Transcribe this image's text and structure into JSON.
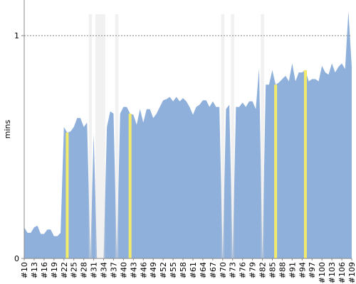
{
  "chart_data": {
    "type": "area",
    "y_label": "mins",
    "categories": [
      "#10",
      null,
      null,
      "#13",
      null,
      null,
      "#16",
      null,
      null,
      "#19",
      null,
      null,
      "#22",
      null,
      null,
      "#25",
      null,
      null,
      "#28",
      null,
      null,
      "#31",
      null,
      null,
      "#34",
      null,
      null,
      "#37",
      null,
      null,
      "#40",
      null,
      null,
      "#43",
      null,
      null,
      "#46",
      null,
      null,
      "#49",
      null,
      null,
      "#52",
      null,
      null,
      "#55",
      null,
      null,
      "#58",
      null,
      null,
      "#61",
      null,
      null,
      "#64",
      null,
      null,
      "#67",
      null,
      null,
      "#70",
      null,
      null,
      "#73",
      null,
      null,
      "#76",
      null,
      null,
      "#79",
      null,
      null,
      "#82",
      null,
      null,
      "#85",
      null,
      null,
      "#88",
      null,
      null,
      "#91",
      null,
      null,
      "#94",
      null,
      null,
      "#97",
      null,
      null,
      "#100",
      null,
      null,
      "#103",
      null,
      null,
      "#106",
      null,
      null,
      "#109"
    ],
    "values": [
      0.14,
      0.115,
      0.115,
      0.14,
      0.147,
      0.11,
      0.11,
      0.13,
      0.13,
      0.1,
      0.1,
      0.115,
      0.59,
      0.565,
      0.57,
      0.59,
      0.63,
      0.63,
      0.59,
      0.61,
      0,
      0.56,
      0,
      0,
      0,
      0.59,
      0.66,
      0.65,
      0,
      0.65,
      0.68,
      0.68,
      0.65,
      0.645,
      0.6,
      0.67,
      0.61,
      0.67,
      0.67,
      0.63,
      0.65,
      0.68,
      0.71,
      0.715,
      0.725,
      0.705,
      0.725,
      0.705,
      0.72,
      0.705,
      0.68,
      0.645,
      0.68,
      0.69,
      0.71,
      0.71,
      0.68,
      0.705,
      0.68,
      0.68,
      0,
      0.67,
      0.69,
      0,
      0.68,
      0.68,
      0.7,
      0.68,
      0.705,
      0.705,
      0.67,
      0.855,
      0,
      0.78,
      0.78,
      0.845,
      0.78,
      0.79,
      0.805,
      0.82,
      0.795,
      0.875,
      0.795,
      0.835,
      0.835,
      0.845,
      0.795,
      0.805,
      0.805,
      0.795,
      0.865,
      0.835,
      0.825,
      0.875,
      0.835,
      0.86,
      0.875,
      0.85,
      1.11,
      0.86
    ],
    "color": "#8fb0da",
    "unstable": {
      "color": "#f2ea6a",
      "indices": [
        13,
        32,
        76,
        85
      ]
    },
    "failed": {
      "color": "#d8d8d8",
      "indices": [
        20,
        22,
        23,
        24,
        28,
        60,
        63,
        72
      ]
    },
    "ylim": [
      0,
      1.16
    ],
    "yticks": [
      0,
      1
    ],
    "gridline": {
      "value": 1,
      "color": "#888"
    }
  }
}
